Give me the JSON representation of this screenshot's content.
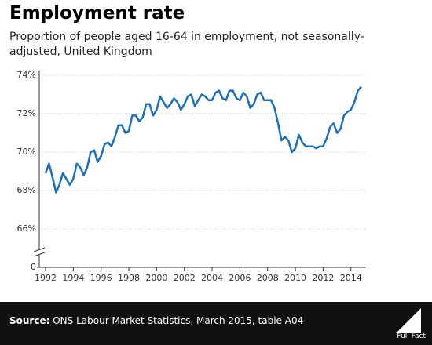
{
  "chart_data": {
    "type": "line",
    "title": "Employment rate",
    "subtitle": "Proportion of people aged 16-64 in employment, not seasonally-adjusted, United Kingdom",
    "source_label": "Source:",
    "source": "ONS Labour Market Statistics, March 2015, table A04",
    "logo": "Full Fact",
    "x": [
      1992,
      1992.25,
      1992.5,
      1992.75,
      1993,
      1993.25,
      1993.5,
      1993.75,
      1994,
      1994.25,
      1994.5,
      1994.75,
      1995,
      1995.25,
      1995.5,
      1995.75,
      1996,
      1996.25,
      1996.5,
      1996.75,
      1997,
      1997.25,
      1997.5,
      1997.75,
      1998,
      1998.25,
      1998.5,
      1998.75,
      1999,
      1999.25,
      1999.5,
      1999.75,
      2000,
      2000.25,
      2000.5,
      2000.75,
      2001,
      2001.25,
      2001.5,
      2001.75,
      2002,
      2002.25,
      2002.5,
      2002.75,
      2003,
      2003.25,
      2003.5,
      2003.75,
      2004,
      2004.25,
      2004.5,
      2004.75,
      2005,
      2005.25,
      2005.5,
      2005.75,
      2006,
      2006.25,
      2006.5,
      2006.75,
      2007,
      2007.25,
      2007.5,
      2007.75,
      2008,
      2008.25,
      2008.5,
      2008.75,
      2009,
      2009.25,
      2009.5,
      2009.75,
      2010,
      2010.25,
      2010.5,
      2010.75,
      2011,
      2011.25,
      2011.5,
      2011.75,
      2012,
      2012.25,
      2012.5,
      2012.75,
      2013,
      2013.25,
      2013.5,
      2013.75,
      2014,
      2014.25,
      2014.5,
      2014.75
    ],
    "series": [
      {
        "color": "#1a6fbf",
        "values": [
          68.9,
          69.4,
          68.7,
          67.9,
          68.3,
          68.9,
          68.6,
          68.3,
          68.6,
          69.4,
          69.2,
          68.8,
          69.2,
          70.0,
          70.1,
          69.5,
          69.8,
          70.4,
          70.5,
          70.3,
          70.8,
          71.4,
          71.4,
          71.0,
          71.1,
          71.9,
          71.9,
          71.6,
          71.8,
          72.5,
          72.5,
          71.9,
          72.2,
          72.9,
          72.6,
          72.3,
          72.5,
          72.8,
          72.6,
          72.2,
          72.5,
          72.9,
          73.0,
          72.4,
          72.7,
          73.0,
          72.9,
          72.7,
          72.7,
          73.1,
          73.2,
          72.8,
          72.7,
          73.2,
          73.2,
          72.8,
          72.7,
          73.1,
          72.9,
          72.3,
          72.5,
          73.0,
          73.1,
          72.7,
          72.7,
          72.7,
          72.3,
          71.5,
          70.6,
          70.8,
          70.6,
          70.0,
          70.2,
          70.9,
          70.5,
          70.3,
          70.3,
          70.3,
          70.2,
          70.3,
          70.3,
          70.7,
          71.3,
          71.5,
          71.0,
          71.2,
          71.9,
          72.1,
          72.2,
          72.6,
          73.2,
          73.4
        ]
      }
    ],
    "xlim": [
      1992,
      2014.75
    ],
    "xticks": [
      1992,
      1994,
      1996,
      1998,
      2000,
      2002,
      2004,
      2006,
      2008,
      2010,
      2012,
      2014
    ],
    "ylim": [
      0,
      74
    ],
    "axis_break": [
      0,
      64
    ],
    "yticks": [
      0,
      {
        "value": 66,
        "label": "66%"
      },
      {
        "value": 68,
        "label": "68%"
      },
      {
        "value": 70,
        "label": "70%"
      },
      {
        "value": 72,
        "label": "72%"
      },
      {
        "value": 74,
        "label": "74%"
      }
    ],
    "grid": true
  }
}
